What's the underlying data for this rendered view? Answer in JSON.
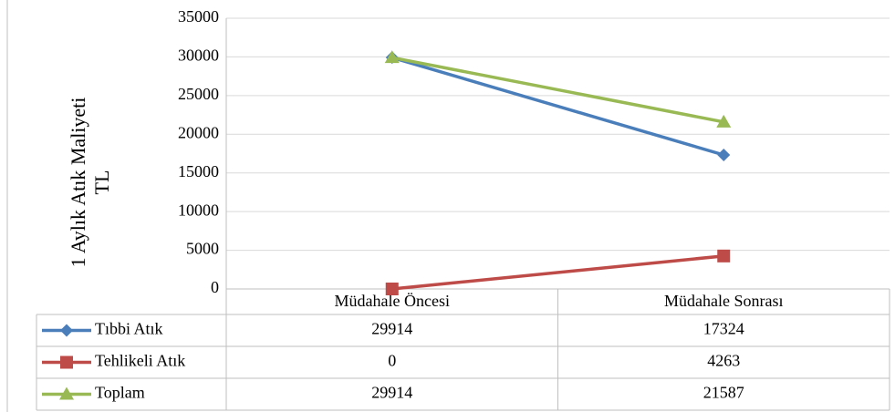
{
  "chart_data": {
    "type": "line",
    "ylabel": [
      "1 Aylık Atık Maliyeti",
      "TL"
    ],
    "categories": [
      "Müdahale Öncesi",
      "Müdahale Sonrası"
    ],
    "series": [
      {
        "name": "Tıbbi Atık",
        "color": "#4a7ebb",
        "marker": "diamond",
        "values": [
          29914,
          17324
        ]
      },
      {
        "name": "Tehlikeli Atık",
        "color": "#be4b48",
        "marker": "square",
        "values": [
          0,
          4263
        ]
      },
      {
        "name": "Toplam",
        "color": "#98b954",
        "marker": "triangle",
        "values": [
          29914,
          21587
        ]
      }
    ],
    "ylim": [
      0,
      35000
    ],
    "yticks": [
      0,
      5000,
      10000,
      15000,
      20000,
      25000,
      30000,
      35000
    ],
    "grid": true
  }
}
